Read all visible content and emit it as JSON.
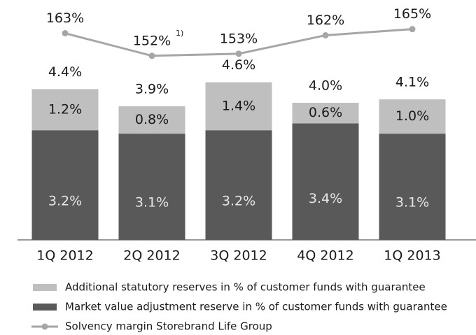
{
  "chart_data": {
    "type": "stacked_bar_line",
    "categories": [
      "1Q 2012",
      "2Q 2012",
      "3Q 2012",
      "4Q 2012",
      "1Q 2013"
    ],
    "ylim": [
      0,
      5
    ],
    "y2lim": [
      140,
      170
    ],
    "series": [
      {
        "name": "Market value adjustment reserve in % of customer funds with guarantee",
        "color": "#595959",
        "type": "bar",
        "values": [
          3.2,
          3.1,
          3.2,
          3.4,
          3.1
        ],
        "value_labels": [
          "3.2%",
          "3.1%",
          "3.2%",
          "3.4%",
          "3.1%"
        ]
      },
      {
        "name": "Additional statutory reserves in % of customer funds with guarantee",
        "color": "#bfbfbf",
        "type": "bar",
        "values": [
          1.2,
          0.8,
          1.4,
          0.6,
          1.0
        ],
        "value_labels": [
          "1.2%",
          "0.8%",
          "1.4%",
          "0.6%",
          "1.0%"
        ]
      },
      {
        "name": "Solvency margin Storebrand Life Group",
        "color": "#a6a6a6",
        "type": "line",
        "axis": "y2",
        "values": [
          163,
          152,
          153,
          162,
          165
        ],
        "value_labels": [
          "163%",
          "152%",
          "153%",
          "162%",
          "165%"
        ]
      }
    ],
    "totals": {
      "values": [
        4.4,
        3.9,
        4.6,
        4.0,
        4.1
      ],
      "value_labels": [
        "4.4%",
        "3.9%",
        "4.6%",
        "4.0%",
        "4.1%"
      ]
    },
    "annotations": [
      {
        "text": "1)",
        "category": 1
      }
    ]
  }
}
